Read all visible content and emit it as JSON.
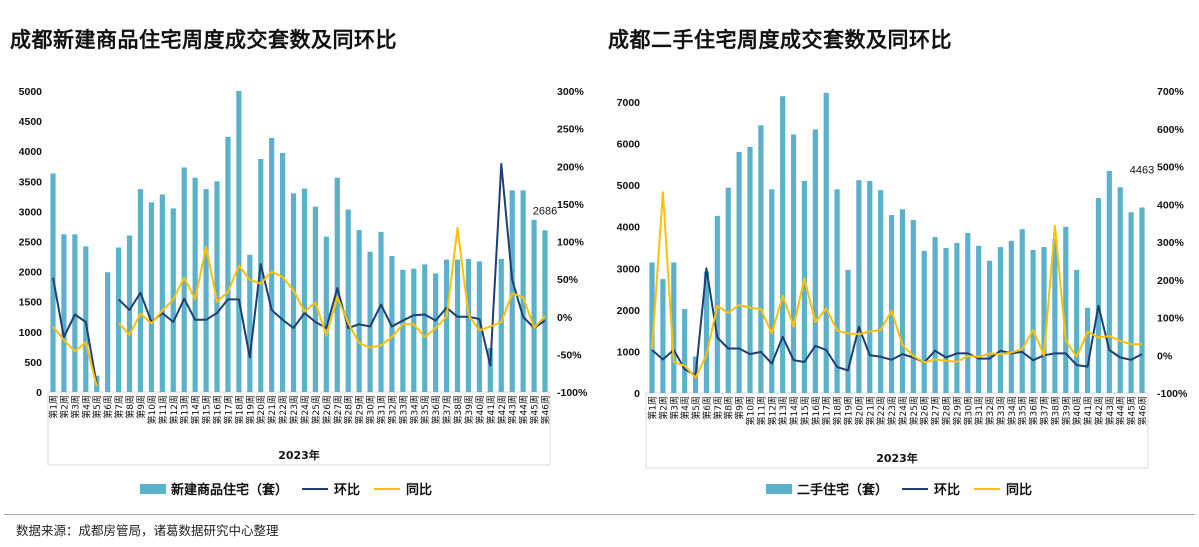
{
  "footer": {
    "source": "数据来源：成都房管局，诸葛数据研究中心整理"
  },
  "chart_data": [
    {
      "type": "bar",
      "title": "成都新建商品住宅周度成交套数及同环比",
      "xlabel": "2023年",
      "categories": [
        "第1周",
        "第2周",
        "第3周",
        "第4周",
        "第5周",
        "第6周",
        "第7周",
        "第8周",
        "第9周",
        "第10周",
        "第11周",
        "第12周",
        "第13周",
        "第14周",
        "第15周",
        "第16周",
        "第17周",
        "第18周",
        "第19周",
        "第20周",
        "第21周",
        "第22周",
        "第23周",
        "第24周",
        "第25周",
        "第26周",
        "第27周",
        "第28周",
        "第29周",
        "第30周",
        "第31周",
        "第32周",
        "第33周",
        "第34周",
        "第35周",
        "第36周",
        "第37周",
        "第38周",
        "第39周",
        "第40周",
        "第41周",
        "第42周",
        "第43周",
        "第44周",
        "第45周",
        "第46周"
      ],
      "y_left": {
        "min": 0,
        "max": 5000,
        "ticks": [
          "0",
          "500",
          "1000",
          "1500",
          "2000",
          "2500",
          "3000",
          "3500",
          "4000",
          "4500",
          "5000"
        ]
      },
      "y_right": {
        "min": -100,
        "max": 300,
        "ticks": [
          "-100%",
          "-50%",
          "0%",
          "50%",
          "100%",
          "150%",
          "200%",
          "250%",
          "300%"
        ]
      },
      "data_label": "2686",
      "legend_position": "bottom",
      "series": [
        {
          "name": "新建商品住宅（套）",
          "kind": "bar",
          "axis": "left",
          "color": "#5bb1cc",
          "values": [
            3630,
            2620,
            2620,
            2420,
            270,
            1990,
            2400,
            2600,
            3370,
            3150,
            3280,
            3050,
            3730,
            3560,
            3370,
            3500,
            4240,
            5000,
            2280,
            3870,
            4220,
            3970,
            3300,
            3380,
            3080,
            2580,
            3560,
            3030,
            2690,
            2330,
            2660,
            2260,
            2030,
            2050,
            2120,
            1970,
            2200,
            2200,
            2210,
            2170,
            730,
            2210,
            3350,
            3350,
            2860,
            2686
          ]
        },
        {
          "name": "环比",
          "kind": "line",
          "axis": "right",
          "color": "#1f3f73",
          "values": [
            52,
            -27,
            3,
            -7,
            -90,
            null,
            23,
            9,
            32,
            -7,
            5,
            -7,
            24,
            -4,
            -4,
            5,
            23,
            23,
            -54,
            70,
            9,
            -4,
            -15,
            5,
            -7,
            -15,
            38,
            -15,
            -10,
            -13,
            16,
            -13,
            -5,
            2,
            3,
            -5,
            12,
            0,
            0,
            -3,
            -65,
            203,
            49,
            0,
            -15,
            -5
          ]
        },
        {
          "name": "同比",
          "kind": "line",
          "axis": "right",
          "color": "#ffc000",
          "values": [
            -13,
            -31,
            -46,
            -34,
            -92,
            null,
            -8,
            -24,
            4,
            -9,
            8,
            23,
            52,
            23,
            93,
            20,
            33,
            68,
            49,
            44,
            60,
            53,
            35,
            7,
            19,
            -25,
            26,
            -8,
            -35,
            -41,
            -38,
            -27,
            -10,
            -10,
            -27,
            -15,
            0,
            118,
            2,
            -18,
            -13,
            -7,
            31,
            26,
            -15,
            1
          ]
        }
      ]
    },
    {
      "type": "bar",
      "title": "成都二手住宅周度成交套数及同环比",
      "xlabel": "2023年",
      "categories": [
        "第1周",
        "第2周",
        "第3周",
        "第4周",
        "第5周",
        "第6周",
        "第7周",
        "第8周",
        "第9周",
        "第10周",
        "第11周",
        "第12周",
        "第13周",
        "第14周",
        "第15周",
        "第16周",
        "第17周",
        "第18周",
        "第19周",
        "第20周",
        "第21周",
        "第22周",
        "第23周",
        "第24周",
        "第25周",
        "第26周",
        "第27周",
        "第28周",
        "第29周",
        "第30周",
        "第31周",
        "第32周",
        "第33周",
        "第34周",
        "第35周",
        "第36周",
        "第37周",
        "第38周",
        "第39周",
        "第40周",
        "第41周",
        "第42周",
        "第43周",
        "第44周",
        "第45周",
        "第46周"
      ],
      "y_left": {
        "min": 0,
        "max": 7000,
        "ticks": [
          "0",
          "1000",
          "2000",
          "3000",
          "4000",
          "5000",
          "6000",
          "7000"
        ]
      },
      "y_right": {
        "min": -100,
        "max": 700,
        "ticks": [
          "-100%",
          "0%",
          "100%",
          "200%",
          "300%",
          "400%",
          "500%",
          "600%",
          "700%"
        ]
      },
      "data_label": "4463",
      "legend_position": "bottom",
      "series": [
        {
          "name": "二手住宅（套）",
          "kind": "bar",
          "axis": "left",
          "color": "#5bb1cc",
          "values": [
            3140,
            2740,
            3140,
            2020,
            880,
            2920,
            4260,
            4940,
            5800,
            5920,
            6440,
            4900,
            7140,
            6220,
            5100,
            6340,
            7220,
            4900,
            2960,
            5120,
            5100,
            4880,
            4280,
            4420,
            4160,
            3420,
            3750,
            3490,
            3610,
            3850,
            3540,
            3180,
            3510,
            3660,
            3940,
            3440,
            3510,
            3700,
            4000,
            2960,
            2050,
            4690,
            5340,
            4950,
            4350,
            4463
          ]
        },
        {
          "name": "环比",
          "kind": "line",
          "axis": "right",
          "color": "#1f3f73",
          "values": [
            14,
            -11,
            14,
            -37,
            -53,
            230,
            47,
            18,
            18,
            3,
            9,
            -22,
            49,
            -13,
            -18,
            25,
            14,
            -31,
            -40,
            75,
            0,
            -4,
            -12,
            3,
            -6,
            -19,
            12,
            -6,
            5,
            5,
            -9,
            -9,
            12,
            5,
            9,
            -13,
            0,
            5,
            5,
            -26,
            -30,
            131,
            14,
            -6,
            -12,
            3
          ]
        },
        {
          "name": "同比",
          "kind": "line",
          "axis": "right",
          "color": "#ffc000",
          "values": [
            16,
            432,
            -18,
            -28,
            -59,
            0,
            131,
            112,
            133,
            126,
            122,
            58,
            158,
            76,
            204,
            88,
            124,
            65,
            58,
            56,
            63,
            67,
            118,
            27,
            -2,
            -19,
            -11,
            -15,
            -17,
            -2,
            -4,
            5,
            3,
            7,
            16,
            67,
            0,
            343,
            38,
            -4,
            62,
            47,
            51,
            38,
            29,
            29
          ]
        }
      ]
    }
  ]
}
